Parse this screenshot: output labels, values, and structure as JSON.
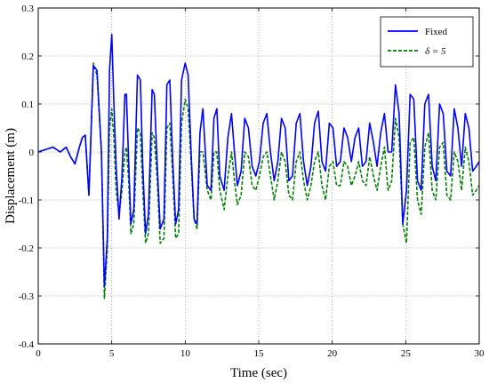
{
  "chart_data": {
    "type": "line",
    "title": "",
    "xlabel": "Time (sec)",
    "ylabel": "Displacement (m)",
    "xlim": [
      0,
      30
    ],
    "ylim": [
      -0.4,
      0.3
    ],
    "xticks": [
      0,
      5,
      10,
      15,
      20,
      25,
      30
    ],
    "yticks": [
      -0.4,
      -0.3,
      -0.2,
      -0.1,
      0,
      0.1,
      0.2,
      0.3
    ],
    "xtick_labels": [
      "0",
      "5",
      "10",
      "15",
      "20",
      "25",
      "30"
    ],
    "ytick_labels": [
      "-0.4",
      "-0.3",
      "-0.2",
      "-0.1",
      "0",
      "0.1",
      "0.2",
      "0.3"
    ],
    "grid": true,
    "grid_style": "dotted",
    "legend_position": "top-right",
    "series": [
      {
        "name": "Fixed",
        "color": "#0000ff",
        "line_style": "solid",
        "x": [
          0,
          0.5,
          1,
          1.5,
          1.9,
          2.2,
          2.5,
          2.8,
          3.0,
          3.2,
          3.45,
          3.75,
          4.0,
          4.3,
          4.5,
          4.7,
          4.85,
          5.0,
          5.15,
          5.3,
          5.5,
          5.7,
          5.9,
          6.0,
          6.15,
          6.3,
          6.5,
          6.75,
          6.95,
          7.1,
          7.3,
          7.5,
          7.75,
          7.9,
          8.1,
          8.3,
          8.55,
          8.75,
          8.95,
          9.15,
          9.35,
          9.55,
          9.75,
          10.0,
          10.2,
          10.4,
          10.6,
          10.8,
          11.0,
          11.2,
          11.5,
          11.75,
          11.95,
          12.15,
          12.35,
          12.65,
          12.9,
          13.15,
          13.35,
          13.55,
          13.8,
          14.05,
          14.3,
          14.55,
          14.8,
          15.05,
          15.3,
          15.55,
          15.8,
          16.05,
          16.3,
          16.55,
          16.8,
          17.05,
          17.3,
          17.55,
          17.8,
          18.05,
          18.3,
          18.55,
          18.8,
          19.05,
          19.3,
          19.55,
          19.8,
          20.05,
          20.3,
          20.55,
          20.8,
          21.05,
          21.3,
          21.55,
          21.8,
          22.05,
          22.3,
          22.55,
          22.8,
          23.05,
          23.3,
          23.55,
          23.8,
          24.05,
          24.3,
          24.55,
          24.8,
          25.05,
          25.3,
          25.55,
          25.8,
          26.05,
          26.3,
          26.55,
          26.8,
          27.05,
          27.3,
          27.55,
          27.8,
          28.05,
          28.3,
          28.55,
          28.8,
          29.05,
          29.3,
          29.55,
          29.8,
          30.0
        ],
        "values": [
          0,
          0.005,
          0.01,
          0.0,
          0.01,
          -0.01,
          -0.025,
          0.01,
          0.03,
          0.035,
          -0.09,
          0.18,
          0.17,
          0.0,
          -0.28,
          -0.18,
          0.17,
          0.245,
          0.1,
          -0.03,
          -0.14,
          -0.05,
          0.12,
          0.12,
          -0.02,
          -0.15,
          -0.12,
          0.16,
          0.15,
          -0.02,
          -0.17,
          -0.13,
          0.13,
          0.12,
          -0.03,
          -0.16,
          -0.14,
          0.14,
          0.15,
          -0.02,
          -0.15,
          -0.12,
          0.15,
          0.185,
          0.16,
          0.0,
          -0.14,
          -0.15,
          0.04,
          0.09,
          -0.07,
          -0.08,
          0.07,
          0.09,
          -0.05,
          -0.08,
          0.03,
          0.08,
          0.0,
          -0.07,
          -0.04,
          0.07,
          0.05,
          -0.03,
          -0.05,
          -0.02,
          0.06,
          0.08,
          0.0,
          -0.06,
          -0.02,
          0.07,
          0.05,
          -0.06,
          -0.05,
          0.06,
          0.08,
          -0.02,
          -0.07,
          -0.03,
          0.06,
          0.085,
          -0.02,
          -0.04,
          0.06,
          0.05,
          -0.03,
          -0.02,
          0.05,
          0.03,
          -0.02,
          0.03,
          0.05,
          -0.03,
          -0.02,
          0.06,
          0.02,
          -0.03,
          0.04,
          0.08,
          0.0,
          0.0,
          0.14,
          0.08,
          -0.15,
          -0.08,
          0.12,
          0.11,
          -0.06,
          -0.08,
          0.1,
          0.12,
          -0.03,
          -0.06,
          0.1,
          0.08,
          -0.04,
          -0.05,
          0.09,
          0.05,
          -0.03,
          0.08,
          0.05,
          -0.04,
          -0.03,
          -0.02
        ]
      },
      {
        "name": "δ = 5",
        "color": "#008000",
        "line_style": "dashed",
        "x": [
          0,
          0.5,
          1,
          1.5,
          1.9,
          2.2,
          2.5,
          2.8,
          3.0,
          3.2,
          3.45,
          3.75,
          4.0,
          4.3,
          4.5,
          4.7,
          4.85,
          5.0,
          5.15,
          5.3,
          5.5,
          5.7,
          5.9,
          6.0,
          6.15,
          6.3,
          6.5,
          6.75,
          6.95,
          7.1,
          7.3,
          7.5,
          7.75,
          7.9,
          8.1,
          8.3,
          8.55,
          8.75,
          8.95,
          9.15,
          9.35,
          9.55,
          9.75,
          10.0,
          10.2,
          10.4,
          10.6,
          10.8,
          11.0,
          11.2,
          11.5,
          11.75,
          11.95,
          12.15,
          12.35,
          12.65,
          12.9,
          13.15,
          13.35,
          13.55,
          13.8,
          14.05,
          14.3,
          14.55,
          14.8,
          15.05,
          15.3,
          15.55,
          15.8,
          16.05,
          16.3,
          16.55,
          16.8,
          17.05,
          17.3,
          17.55,
          17.8,
          18.05,
          18.3,
          18.55,
          18.8,
          19.05,
          19.3,
          19.55,
          19.8,
          20.05,
          20.3,
          20.55,
          20.8,
          21.05,
          21.3,
          21.55,
          21.8,
          22.05,
          22.3,
          22.55,
          22.8,
          23.05,
          23.3,
          23.55,
          23.8,
          24.05,
          24.3,
          24.55,
          24.8,
          25.05,
          25.3,
          25.55,
          25.8,
          26.05,
          26.3,
          26.55,
          26.8,
          27.05,
          27.3,
          27.55,
          27.8,
          28.05,
          28.3,
          28.55,
          28.8,
          29.05,
          29.3,
          29.55,
          29.8,
          30.0
        ],
        "values": [
          0,
          0.005,
          0.01,
          0.0,
          0.01,
          -0.01,
          -0.025,
          0.01,
          0.03,
          0.035,
          -0.09,
          0.185,
          0.16,
          0.0,
          -0.305,
          -0.2,
          0.05,
          0.09,
          0.03,
          -0.08,
          -0.13,
          -0.08,
          0.0,
          0.01,
          -0.06,
          -0.17,
          -0.15,
          0.05,
          0.04,
          -0.07,
          -0.19,
          -0.17,
          0.04,
          0.03,
          -0.06,
          -0.19,
          -0.18,
          0.05,
          0.06,
          -0.05,
          -0.18,
          -0.17,
          0.06,
          0.11,
          0.09,
          -0.02,
          -0.14,
          -0.16,
          0.0,
          0.0,
          -0.08,
          -0.1,
          0.0,
          0.0,
          -0.08,
          -0.12,
          -0.05,
          0.0,
          -0.06,
          -0.11,
          -0.09,
          0.0,
          -0.01,
          -0.07,
          -0.08,
          -0.05,
          -0.01,
          0.0,
          -0.05,
          -0.1,
          -0.06,
          0.0,
          -0.02,
          -0.09,
          -0.1,
          -0.02,
          0.0,
          -0.06,
          -0.1,
          -0.07,
          -0.02,
          0.0,
          -0.07,
          -0.1,
          -0.03,
          -0.02,
          -0.07,
          -0.07,
          -0.02,
          -0.03,
          -0.07,
          -0.05,
          -0.02,
          -0.06,
          -0.07,
          -0.01,
          -0.05,
          -0.08,
          -0.03,
          0.01,
          -0.08,
          -0.06,
          0.07,
          0.03,
          -0.15,
          -0.19,
          0.02,
          0.03,
          -0.1,
          -0.13,
          0.01,
          0.04,
          -0.08,
          -0.1,
          0.01,
          0.02,
          -0.09,
          -0.1,
          0.0,
          -0.02,
          -0.08,
          0.01,
          -0.02,
          -0.09,
          -0.08,
          -0.07
        ]
      }
    ]
  }
}
